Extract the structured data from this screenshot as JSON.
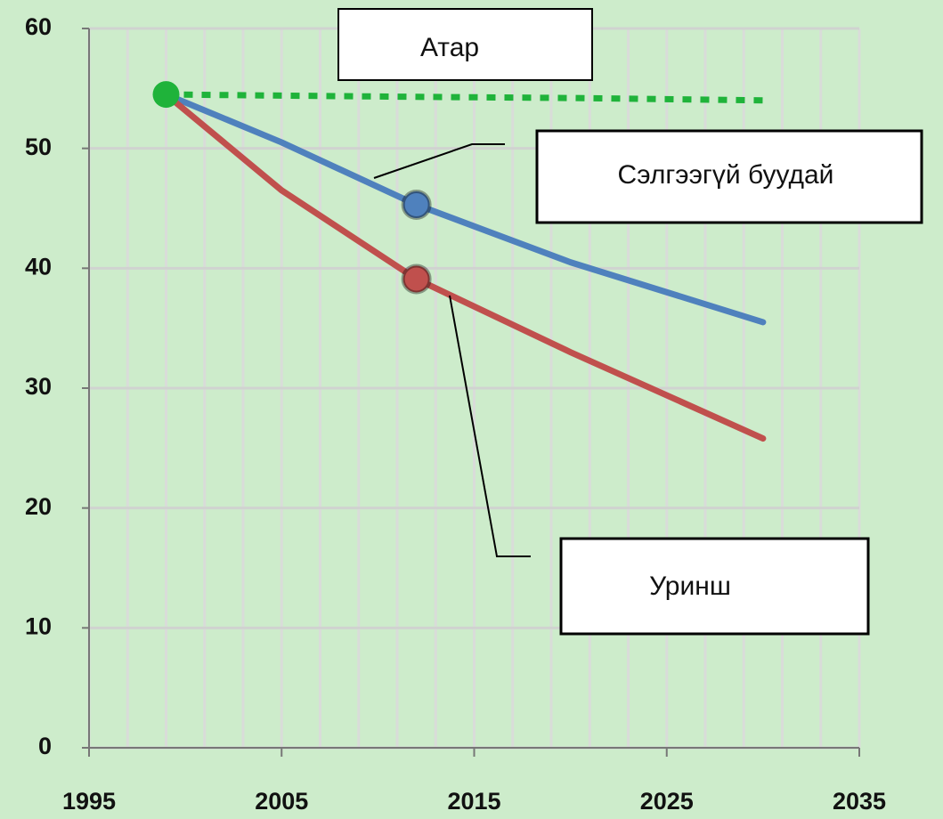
{
  "chart_data": {
    "type": "line",
    "x": [
      1999,
      2005,
      2012,
      2020,
      2030
    ],
    "series": [
      {
        "name": "Атар",
        "color": "#1fb33a",
        "dash": "dotted",
        "values": [
          54.5,
          54.4,
          54.3,
          54.2,
          54.0
        ],
        "marker_index": 0
      },
      {
        "name": "Сэлгээгүй буудай",
        "color": "#4f81bd",
        "dash": "solid",
        "values": [
          54.5,
          50.5,
          45.3,
          40.5,
          35.5
        ],
        "marker_index": 2
      },
      {
        "name": "Уринш",
        "color": "#c0504d",
        "dash": "solid",
        "values": [
          54.5,
          46.5,
          39.1,
          33.0,
          25.8
        ],
        "marker_index": 2
      }
    ],
    "xlim": [
      1995,
      2035
    ],
    "xticks": [
      1995,
      2005,
      2015,
      2025,
      2035
    ],
    "xgrid": [
      1995,
      1997,
      1999,
      2001,
      2003,
      2005,
      2007,
      2009,
      2011,
      2013,
      2015,
      2017,
      2019,
      2021,
      2023,
      2025,
      2027,
      2029,
      2031,
      2033,
      2035
    ],
    "ylim": [
      0,
      60
    ],
    "yticks": [
      0,
      10,
      20,
      30,
      40,
      50,
      60
    ],
    "grid": true
  }
}
